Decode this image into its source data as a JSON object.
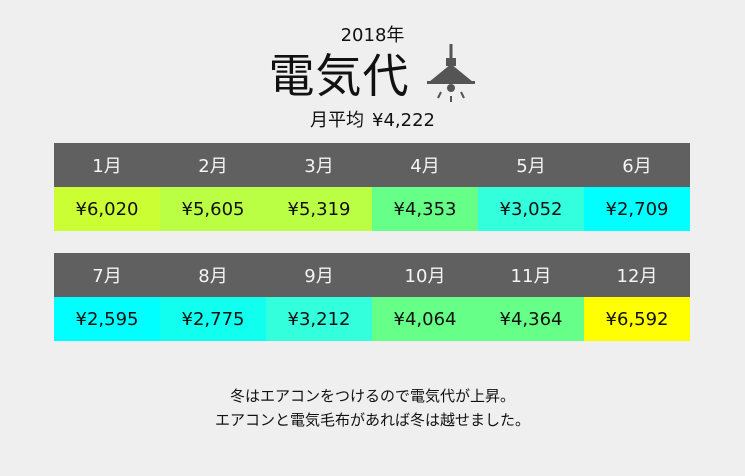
{
  "header": {
    "year": "2018年",
    "title": "電気代",
    "average_label": "月平均",
    "average_value": "¥4,222"
  },
  "chart_data": {
    "type": "table",
    "title": "電気代",
    "subtitle": "2018年",
    "categories": [
      "1月",
      "2月",
      "3月",
      "4月",
      "5月",
      "6月",
      "7月",
      "8月",
      "9月",
      "10月",
      "11月",
      "12月"
    ],
    "values": [
      6020,
      5605,
      5319,
      4353,
      3052,
      2709,
      2595,
      2775,
      3212,
      4064,
      4364,
      6592
    ],
    "value_labels": [
      "¥6,020",
      "¥5,605",
      "¥5,319",
      "¥4,353",
      "¥3,052",
      "¥2,709",
      "¥2,595",
      "¥2,775",
      "¥3,212",
      "¥4,064",
      "¥4,364",
      "¥6,592"
    ],
    "cell_colors": [
      "#ccff33",
      "#bbff44",
      "#bbff44",
      "#66ff88",
      "#33ffdd",
      "#00ffff",
      "#00ffff",
      "#11ffee",
      "#33ffdd",
      "#66ff88",
      "#66ff88",
      "#ffff00"
    ]
  },
  "icon": "ceiling-lamp-icon",
  "note": {
    "line1": "冬はエアコンをつけるので電気代が上昇。",
    "line2": "エアコンと電気毛布があれば冬は越せました。"
  }
}
